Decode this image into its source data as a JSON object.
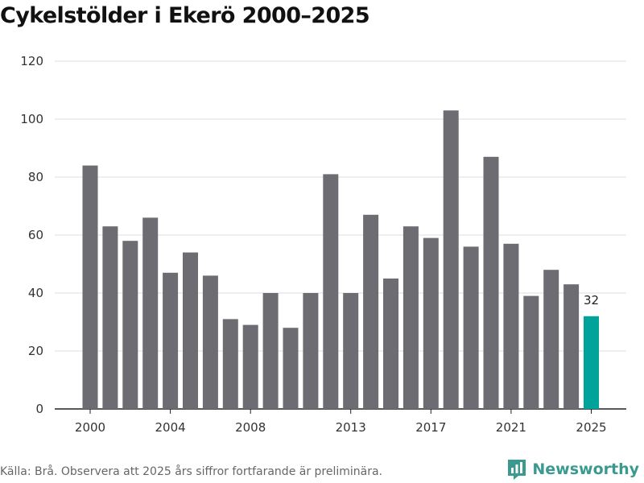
{
  "chart_data": {
    "type": "bar",
    "title": "Cykelstölder i Ekerö 2000–2025",
    "xlabel": "",
    "ylabel": "",
    "ylim": [
      0,
      120
    ],
    "yticks": [
      0,
      20,
      40,
      60,
      80,
      100,
      120
    ],
    "xticks": [
      "2000",
      "2004",
      "2008",
      "2013",
      "2017",
      "2021",
      "2025"
    ],
    "categories": [
      "2000",
      "2001",
      "2002",
      "2003",
      "2004",
      "2005",
      "2006",
      "2007",
      "2008",
      "2009",
      "2010",
      "2011",
      "2012",
      "2013",
      "2014",
      "2015",
      "2016",
      "2017",
      "2018",
      "2019",
      "2020",
      "2021",
      "2022",
      "2023",
      "2024",
      "2025"
    ],
    "values": [
      84,
      63,
      58,
      66,
      47,
      54,
      46,
      31,
      29,
      40,
      28,
      40,
      81,
      40,
      67,
      45,
      63,
      59,
      103,
      56,
      87,
      57,
      39,
      48,
      43,
      32
    ],
    "highlight_index": 25,
    "highlight_label": "32",
    "bar_color": "#6d6c72",
    "highlight_color": "#00a39a",
    "grid": true
  },
  "source": "Källa: Brå. Observera att 2025 års siffror fortfarande är preliminära.",
  "brand": {
    "name": "Newsworthy",
    "logo_icon": "newsworthy-logo-icon"
  }
}
